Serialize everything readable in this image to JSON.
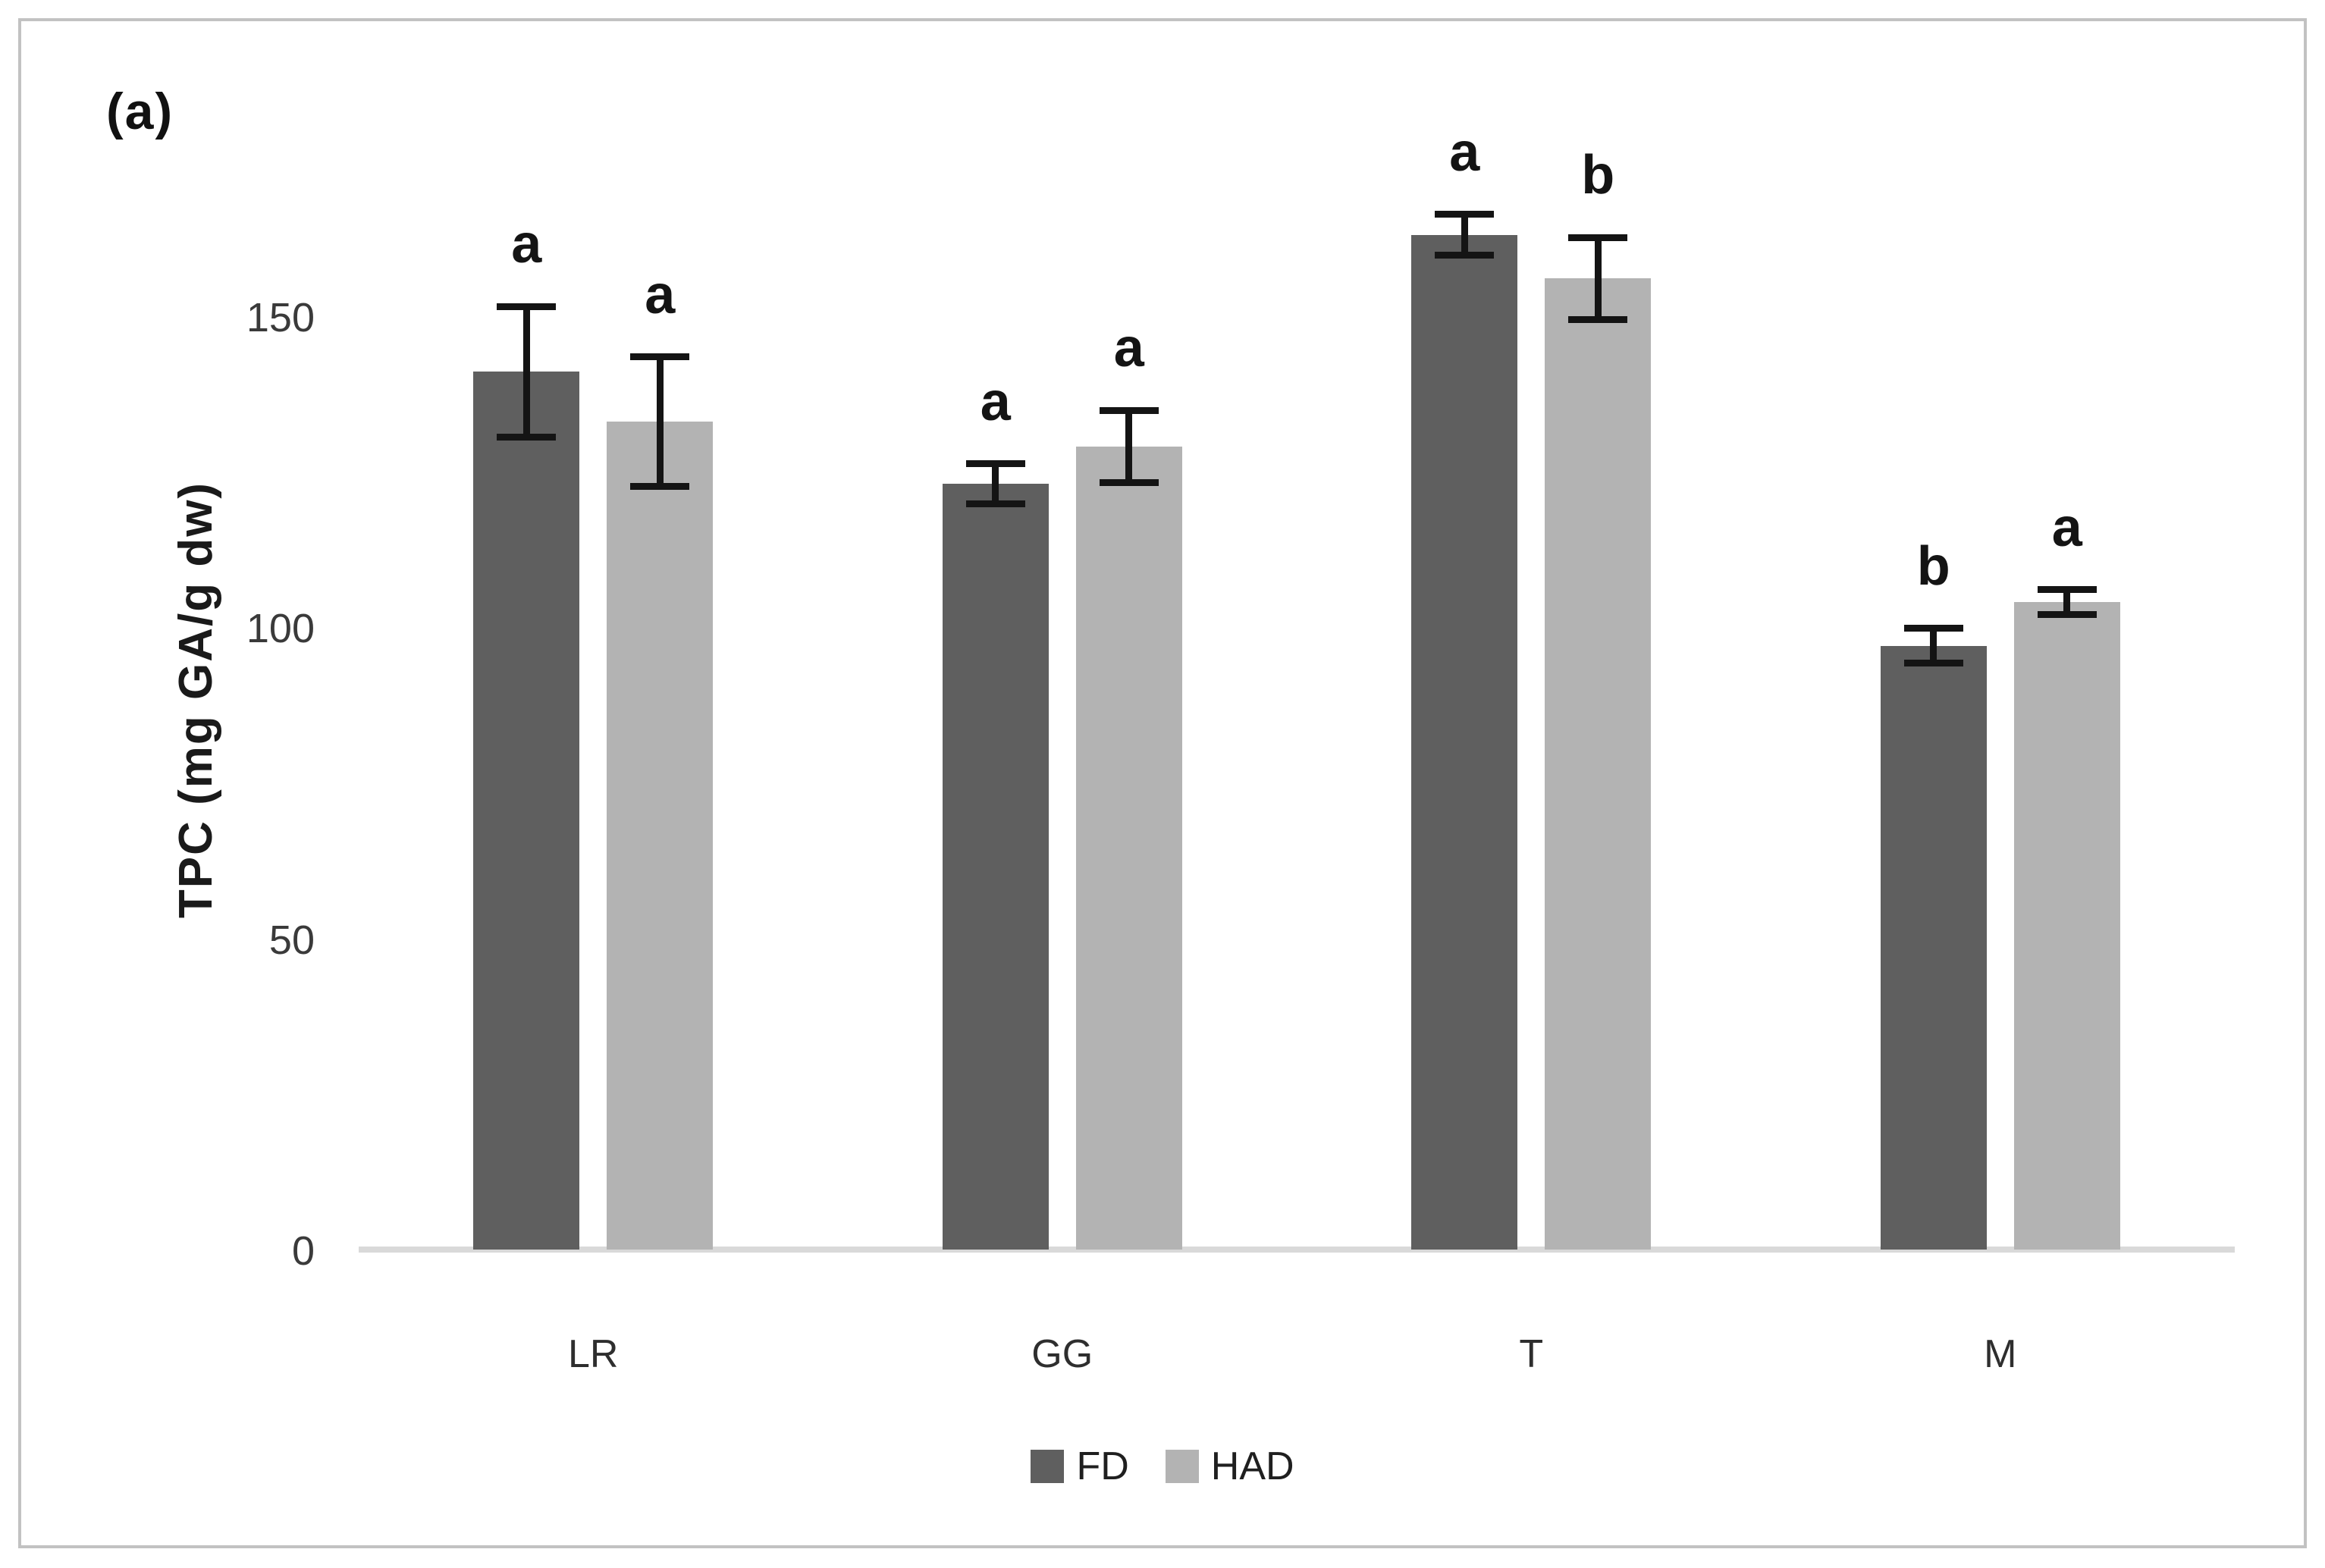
{
  "figure": {
    "panel_label": "(a)"
  },
  "chart_data": {
    "type": "bar",
    "title": "",
    "xlabel": "",
    "ylabel": "TPC (mg GA/g dw)",
    "ylim": [
      0,
      175
    ],
    "yticks": [
      0,
      50,
      100,
      150
    ],
    "grid": false,
    "legend_position": "bottom-center",
    "categories": [
      "LR",
      "GG",
      "T",
      "M"
    ],
    "series": [
      {
        "name": "FD",
        "color": "#5f5f5f",
        "values": [
          141,
          123,
          163,
          97
        ],
        "errors": [
          10.5,
          3.2,
          3.3,
          2.8
        ],
        "sig_letters": [
          "a",
          "a",
          "a",
          "b"
        ]
      },
      {
        "name": "HAD",
        "color": "#b3b3b3",
        "values": [
          133,
          129,
          156,
          104
        ],
        "errors": [
          10.4,
          5.8,
          6.6,
          2.0
        ],
        "sig_letters": [
          "a",
          "a",
          "b",
          "a"
        ]
      }
    ],
    "error_bar_color": "#141414",
    "axis_line_color": "#d9d9d9"
  }
}
